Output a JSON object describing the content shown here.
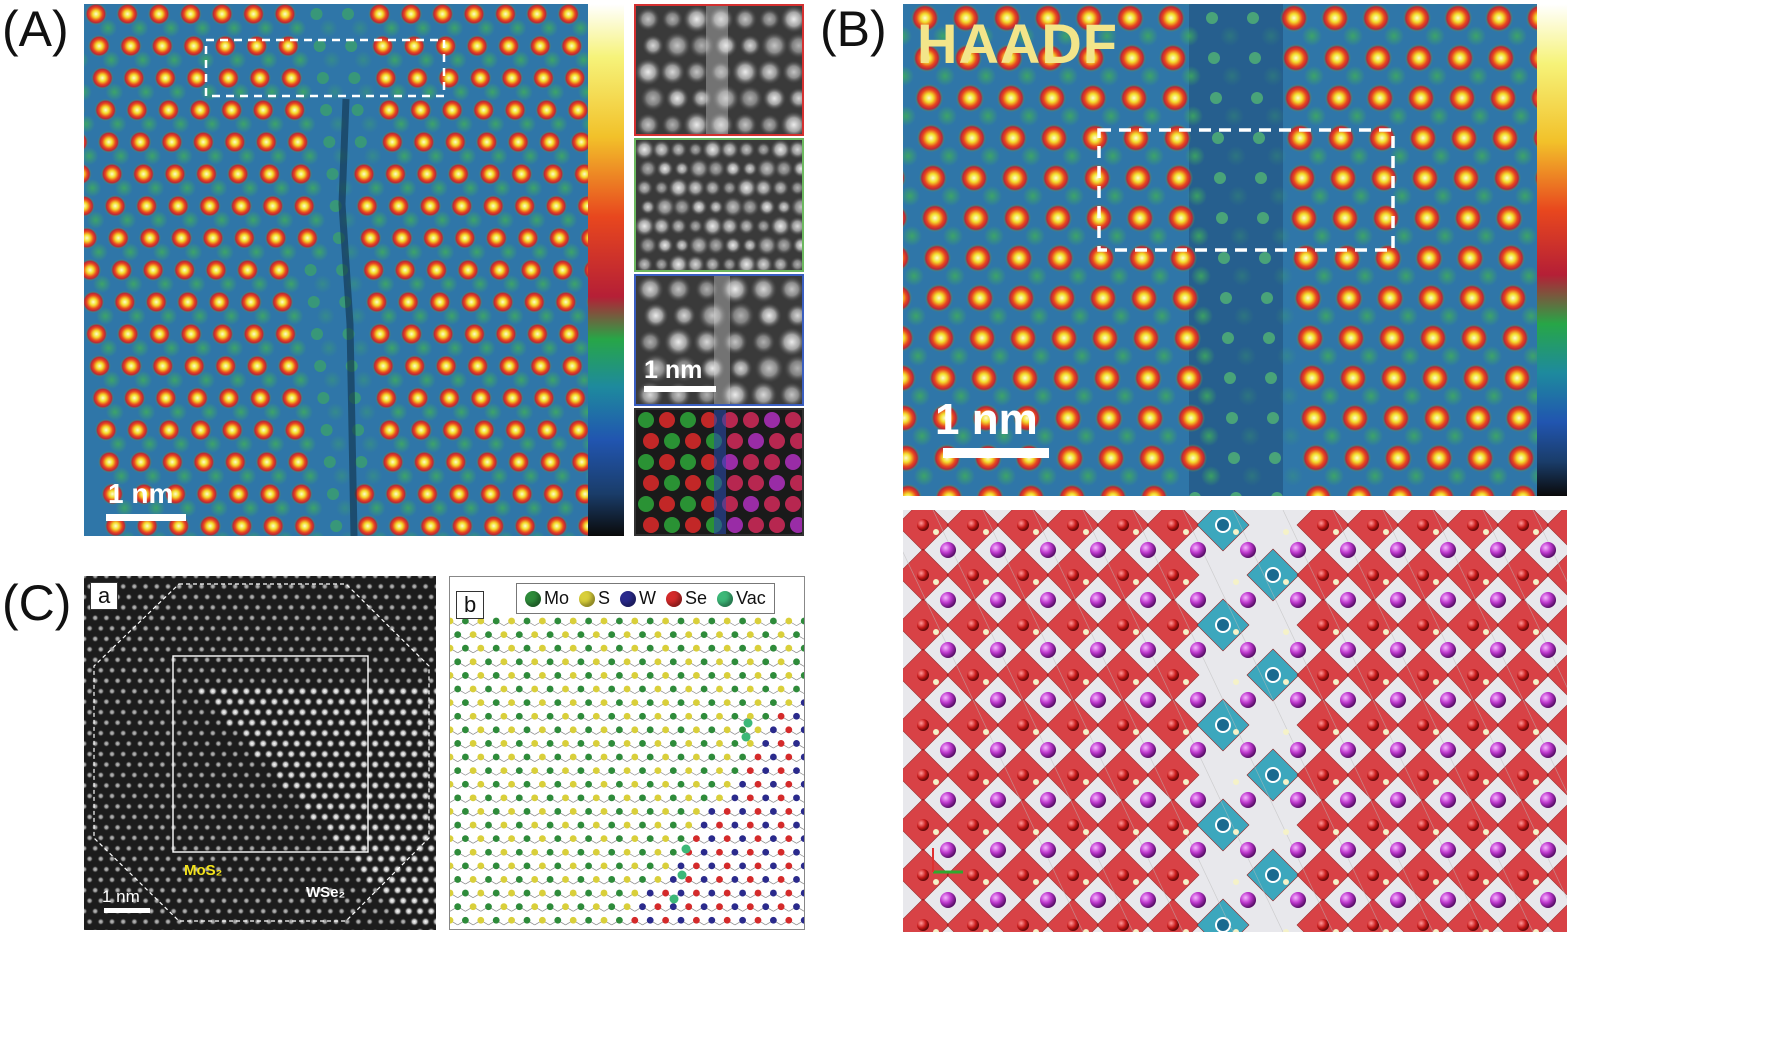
{
  "panels": {
    "A": {
      "letter": "(A)",
      "scale_bar": "1 nm",
      "inset_scale_bar": "1 nm"
    },
    "B": {
      "letter": "(B)",
      "mode_label": "HAADF",
      "scale_bar": "1 nm"
    },
    "C": {
      "letter": "(C)",
      "sub_a": "a",
      "sub_b": "b",
      "scale_bar": "1 nm",
      "label_mos2": "MoS₂",
      "label_wse2": "WSe₂",
      "legend": [
        {
          "label": "Mo",
          "color": "#2e8b3a"
        },
        {
          "label": "S",
          "color": "#d9cf3a"
        },
        {
          "label": "W",
          "color": "#2a2a8c"
        },
        {
          "label": "Se",
          "color": "#d42a2a"
        },
        {
          "label": "Vac",
          "color": "#3cb878"
        }
      ]
    }
  },
  "colors": {
    "map_bg": "#2f76a8",
    "map_halo": "#3fae5a",
    "atom_core": "#f3df2c",
    "atom_ring": "#e8471e",
    "octahedra": "#d6262a",
    "octahedra_defect": "#2aa0b8",
    "se_atom": "#c03ad0"
  }
}
